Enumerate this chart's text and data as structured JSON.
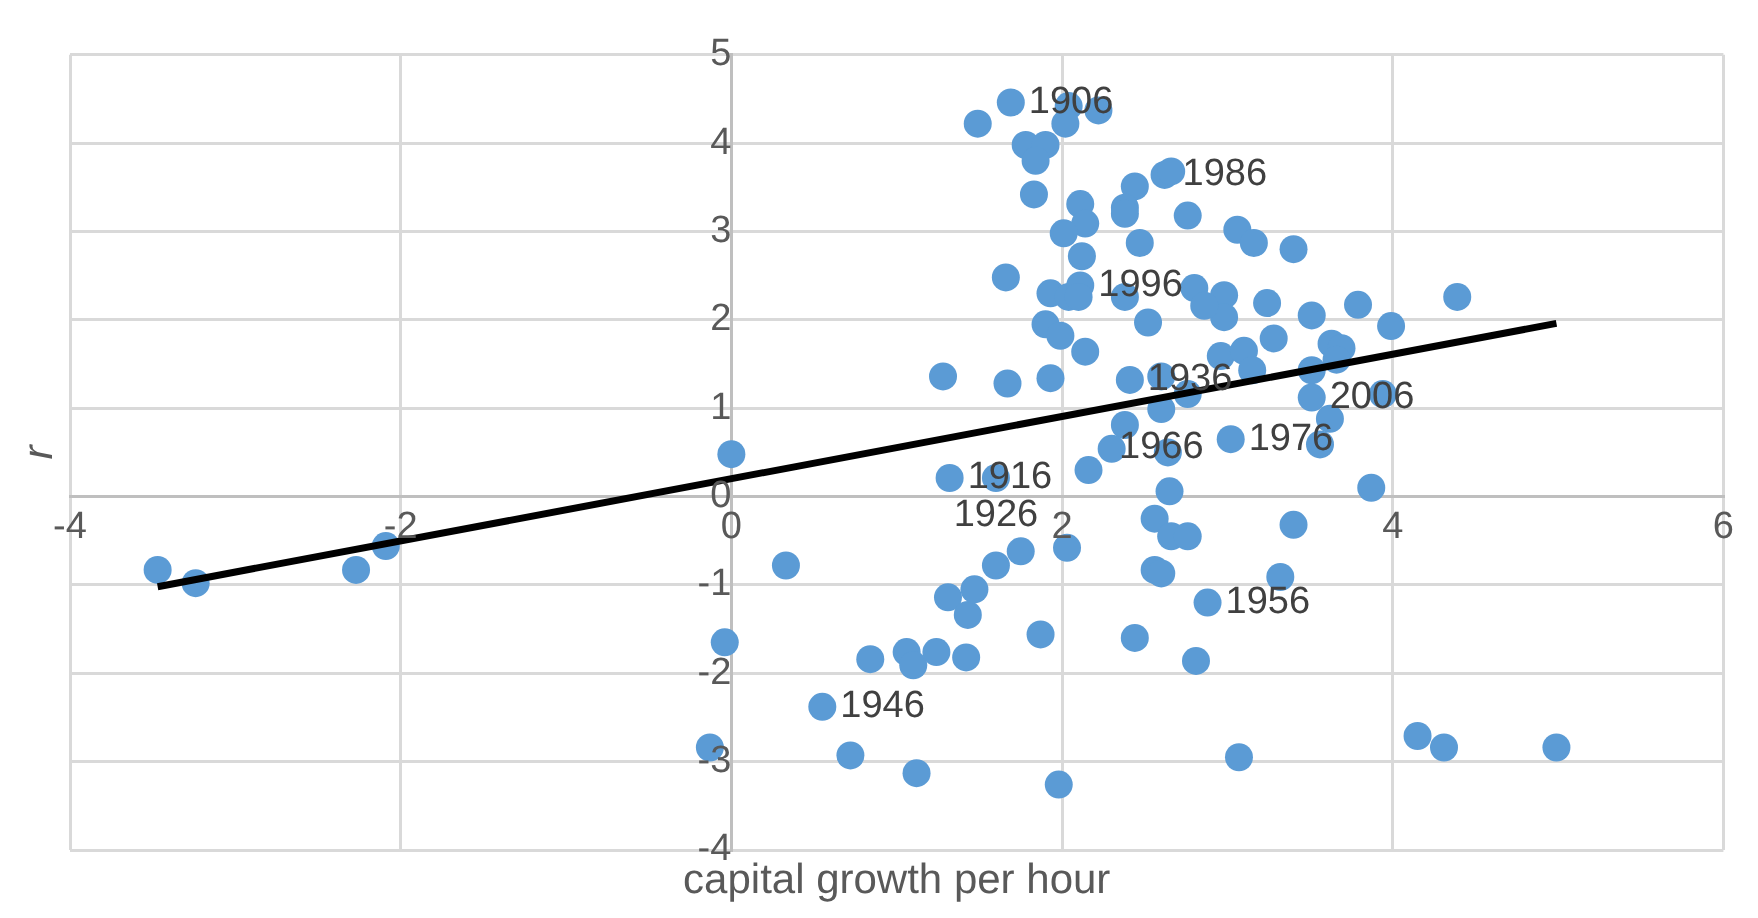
{
  "chart_data": {
    "type": "scatter",
    "xlabel": "capital growth per hour",
    "ylabel": "r",
    "xlim": [
      -4,
      6
    ],
    "xticks": [
      -4,
      -2,
      0,
      2,
      4,
      6
    ],
    "ylim": [
      -4,
      5
    ],
    "yticks": [
      -4,
      -3,
      -2,
      -1,
      0,
      1,
      2,
      3,
      4,
      5
    ],
    "grid": true,
    "series": [
      {
        "marker": "circle",
        "color": "#5b9bd5",
        "x": [
          -3.47,
          -3.24,
          -2.27,
          -2.09,
          0.0,
          0.33,
          -0.04,
          -0.13,
          0.55,
          0.72,
          0.84,
          1.06,
          1.1,
          1.12,
          1.24,
          1.42,
          1.31,
          1.43,
          1.47,
          1.6,
          1.75,
          2.03,
          1.87,
          1.98,
          3.07,
          4.15,
          4.31,
          4.99,
          1.32,
          1.6,
          2.16,
          2.65,
          2.56,
          2.66,
          2.76,
          2.56,
          2.6,
          2.88,
          2.44,
          2.81,
          3.4,
          3.32,
          3.87,
          1.49,
          1.69,
          2.04,
          2.22,
          2.02,
          1.78,
          1.9,
          1.84,
          1.83,
          2.11,
          2.14,
          2.01,
          2.44,
          2.38,
          2.38,
          2.62,
          2.66,
          2.76,
          2.47,
          3.06,
          3.16,
          3.4,
          2.12,
          1.66,
          1.93,
          2.04,
          2.11,
          2.1,
          2.38,
          2.8,
          2.98,
          2.98,
          2.86,
          3.24,
          3.51,
          3.79,
          4.39,
          3.99,
          2.52,
          1.9,
          1.99,
          2.14,
          3.28,
          3.63,
          3.69,
          3.66,
          2.96,
          3.1,
          3.15,
          3.51,
          1.28,
          1.67,
          1.93,
          2.41,
          2.6,
          2.76,
          3.51,
          3.94,
          2.6,
          2.38,
          2.3,
          2.64,
          3.02,
          3.62,
          3.56
        ],
        "values": [
          -0.83,
          -0.98,
          -0.83,
          -0.56,
          0.48,
          -0.78,
          -1.65,
          -2.84,
          -2.38,
          -2.93,
          -1.84,
          -1.76,
          -1.91,
          -3.13,
          -1.76,
          -1.82,
          -1.14,
          -1.34,
          -1.05,
          -0.78,
          -0.62,
          -0.58,
          -1.56,
          -3.26,
          -2.95,
          -2.71,
          -2.84,
          -2.84,
          0.21,
          0.21,
          0.3,
          0.06,
          -0.25,
          -0.45,
          -0.45,
          -0.83,
          -0.87,
          -1.2,
          -1.6,
          -1.86,
          -0.32,
          -0.91,
          0.1,
          4.22,
          4.46,
          4.42,
          4.37,
          4.22,
          3.98,
          3.98,
          3.8,
          3.42,
          3.31,
          3.09,
          2.98,
          3.51,
          3.27,
          3.2,
          3.64,
          3.68,
          3.18,
          2.87,
          3.02,
          2.87,
          2.8,
          2.72,
          2.48,
          2.3,
          2.26,
          2.39,
          2.26,
          2.26,
          2.36,
          2.28,
          2.03,
          2.16,
          2.19,
          2.05,
          2.17,
          2.26,
          1.93,
          1.97,
          1.95,
          1.82,
          1.64,
          1.79,
          1.73,
          1.68,
          1.55,
          1.59,
          1.65,
          1.43,
          1.43,
          1.36,
          1.28,
          1.34,
          1.32,
          1.36,
          1.16,
          1.12,
          1.16,
          0.99,
          0.81,
          0.54,
          0.5,
          0.65,
          0.88,
          0.59
        ]
      },
      {
        "type": "line",
        "color": "#000000",
        "x": [
          -3.47,
          4.99
        ],
        "values": [
          -1.02,
          1.96
        ]
      }
    ],
    "annotations": [
      {
        "text": "1906",
        "x": 1.69,
        "y": 4.46
      },
      {
        "text": "1986",
        "x": 2.62,
        "y": 3.64
      },
      {
        "text": "1996",
        "x": 2.11,
        "y": 2.39
      },
      {
        "text": "1936",
        "x": 2.41,
        "y": 1.32
      },
      {
        "text": "1966",
        "x": 2.6,
        "y": 0.99
      },
      {
        "text": "2006",
        "x": 3.51,
        "y": 1.12
      },
      {
        "text": "1976",
        "x": 3.02,
        "y": 0.65
      },
      {
        "text": "1916",
        "x": 1.32,
        "y": 0.21
      },
      {
        "text": "1926",
        "x": 1.6,
        "y": 0.21
      },
      {
        "text": "1956",
        "x": 2.88,
        "y": -1.2
      },
      {
        "text": "1946",
        "x": 0.55,
        "y": -2.38
      }
    ]
  }
}
